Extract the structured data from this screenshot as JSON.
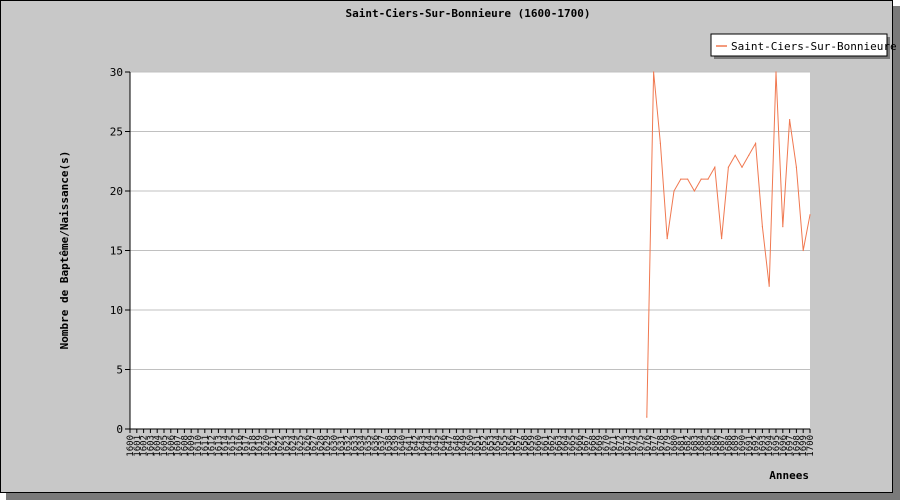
{
  "chart_data": {
    "type": "line",
    "title": "Saint-Ciers-Sur-Bonnieure (1600-1700)",
    "xlabel": "Annees",
    "ylabel": "Nombre de Baptême/Naissance(s)",
    "ylim": [
      0,
      30
    ],
    "yticks": [
      0,
      5,
      10,
      15,
      20,
      25,
      30
    ],
    "grid": true,
    "legend_position": "top-right",
    "colors": {
      "line": "#f07850",
      "plot_bg": "#ffffff",
      "frame_bg": "#c8c8c8",
      "grid": "#c0c0c0"
    },
    "categories": [
      "1600",
      "1601",
      "1602",
      "1603",
      "1604",
      "1605",
      "1606",
      "1607",
      "1608",
      "1609",
      "1610",
      "1611",
      "1612",
      "1613",
      "1614",
      "1615",
      "1616",
      "1617",
      "1618",
      "1619",
      "1620",
      "1621",
      "1622",
      "1623",
      "1624",
      "1625",
      "1626",
      "1627",
      "1628",
      "1629",
      "1630",
      "1631",
      "1632",
      "1633",
      "1634",
      "1635",
      "1636",
      "1637",
      "1638",
      "1639",
      "1640",
      "1641",
      "1642",
      "1643",
      "1644",
      "1645",
      "1646",
      "1647",
      "1648",
      "1649",
      "1650",
      "1651",
      "1652",
      "1653",
      "1654",
      "1655",
      "1656",
      "1657",
      "1658",
      "1659",
      "1660",
      "1661",
      "1662",
      "1663",
      "1664",
      "1665",
      "1666",
      "1667",
      "1668",
      "1669",
      "1670",
      "1671",
      "1672",
      "1673",
      "1674",
      "1675",
      "1676",
      "1677",
      "1678",
      "1679",
      "1680",
      "1681",
      "1682",
      "1683",
      "1684",
      "1685",
      "1686",
      "1687",
      "1688",
      "1689",
      "1690",
      "1691",
      "1692",
      "1693",
      "1694",
      "1695",
      "1696",
      "1697",
      "1698",
      "1699",
      "1700"
    ],
    "series": [
      {
        "name": "Saint-Ciers-Sur-Bonnieure",
        "x": [
          1676,
          1677,
          1678,
          1679,
          1680,
          1681,
          1682,
          1683,
          1684,
          1685,
          1686,
          1687,
          1688,
          1689,
          1690,
          1691,
          1692,
          1693,
          1694,
          1695,
          1696,
          1697,
          1698,
          1699,
          1700
        ],
        "values": [
          1,
          30,
          24,
          16,
          20,
          21,
          21,
          20,
          21,
          21,
          22,
          16,
          22,
          23,
          22,
          23,
          24,
          17,
          12,
          31,
          17,
          26,
          22,
          15,
          18
        ]
      }
    ]
  }
}
